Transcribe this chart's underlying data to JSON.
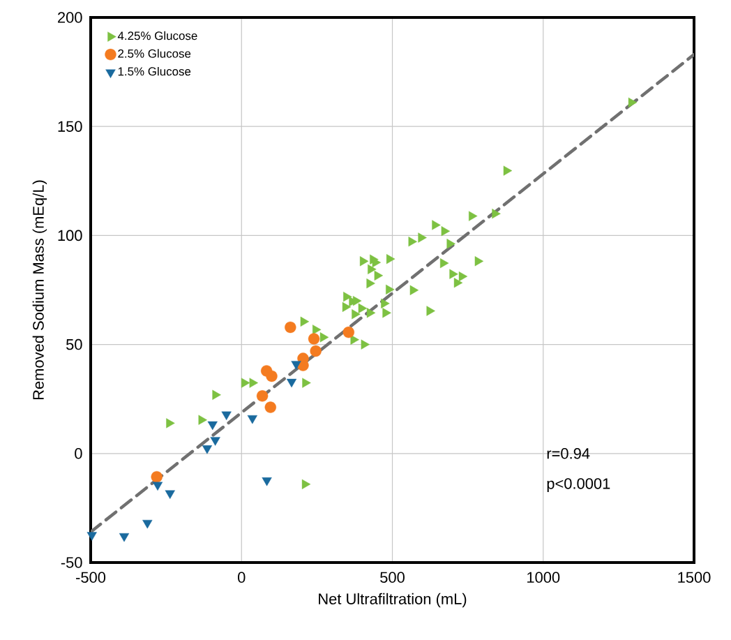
{
  "chart_data": {
    "type": "scatter",
    "xlabel": "Net Ultrafiltration (mL)",
    "ylabel": "Removed Sodium Mass (mEq/L)",
    "xlim": [
      -500,
      1500
    ],
    "ylim": [
      -50,
      200
    ],
    "xticks": [
      -500,
      0,
      500,
      1000,
      1500
    ],
    "yticks": [
      -50,
      0,
      50,
      100,
      150,
      200
    ],
    "grid": true,
    "legend": "top left",
    "annotations": [
      "r=0.94",
      "p<0.0001"
    ],
    "series": [
      {
        "name": "4.25% Glucose",
        "color": "#7dc142",
        "marker": "triangle",
        "x": [
          1292,
          878,
          763,
          840,
          641,
          672,
          595,
          563,
          690,
          402,
          435,
          443,
          490,
          783,
          668,
          428,
          450,
          699,
          730,
          714,
          424,
          488,
          568,
          347,
          366,
          379,
          344,
          397,
          472,
          477,
          425,
          623,
          375,
          205,
          245,
          270,
          371,
          406,
          -87,
          -240,
          -133,
          9,
          36,
          211,
          210
        ],
        "values": [
          161,
          129.7,
          108.9,
          110,
          104.8,
          102,
          99,
          97.2,
          96.2,
          88.2,
          89,
          87.6,
          89.2,
          88.2,
          87.3,
          84.5,
          81.6,
          82.3,
          81.2,
          78.3,
          78,
          75.2,
          74.9,
          71.9,
          69.7,
          70,
          67.2,
          66.6,
          68.8,
          64.5,
          64.5,
          65.4,
          63.9,
          60.5,
          56.8,
          53.3,
          52.2,
          50,
          26.9,
          13.9,
          15.4,
          32.4,
          32.4,
          32.4,
          -14.1
        ]
      },
      {
        "name": "2.5% Glucose",
        "color": "#f47b20",
        "marker": "circle",
        "x": [
          162,
          240,
          246,
          204,
          204,
          83,
          100,
          69,
          96,
          355,
          -281
        ],
        "values": [
          57.9,
          52.6,
          47,
          43.6,
          40.4,
          37.9,
          35.5,
          26.4,
          21.2,
          55.6,
          -10.7
        ]
      },
      {
        "name": "1.5% Glucose",
        "color": "#1a6a9e",
        "marker": "triangle down",
        "x": [
          -50,
          -96,
          -87,
          -114,
          36,
          166,
          181,
          84,
          -278,
          -237,
          -312,
          -389,
          -496
        ],
        "values": [
          17.9,
          13.4,
          6.2,
          2.4,
          16.2,
          32.9,
          41.1,
          -12.3,
          -14.4,
          -18.2,
          -31.8,
          -37.9,
          -37.4
        ]
      },
      {
        "type": "line",
        "color": "#707070",
        "line_style": "dashed",
        "marker": "none",
        "x": [
          -500,
          1500
        ],
        "values": [
          -36,
          183
        ]
      }
    ]
  }
}
